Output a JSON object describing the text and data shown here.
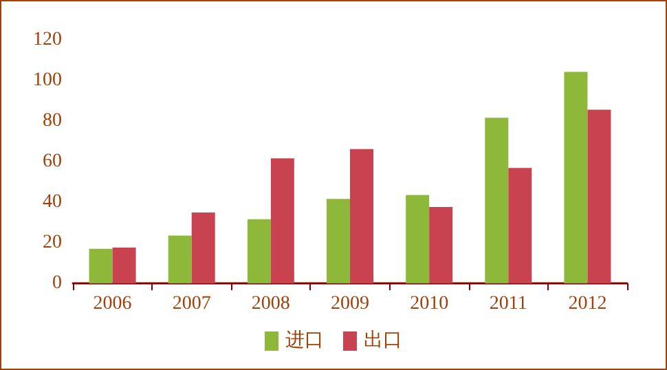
{
  "chart_data": {
    "type": "bar",
    "categories": [
      "2006",
      "2007",
      "2008",
      "2009",
      "2010",
      "2011",
      "2012"
    ],
    "series": [
      {
        "name": "进口",
        "color": "#8db83a",
        "values": [
          17,
          23.6,
          31.6,
          41.6,
          43.6,
          81.6,
          104.2
        ]
      },
      {
        "name": "出口",
        "color": "#c8424f",
        "values": [
          17.6,
          34.9,
          61.6,
          66.2,
          37.6,
          56.9,
          85.6
        ]
      }
    ],
    "ylim": [
      0,
      120
    ],
    "yticks": [
      0,
      20,
      40,
      60,
      80,
      100,
      120
    ],
    "grid": false,
    "legend": "bottom"
  }
}
